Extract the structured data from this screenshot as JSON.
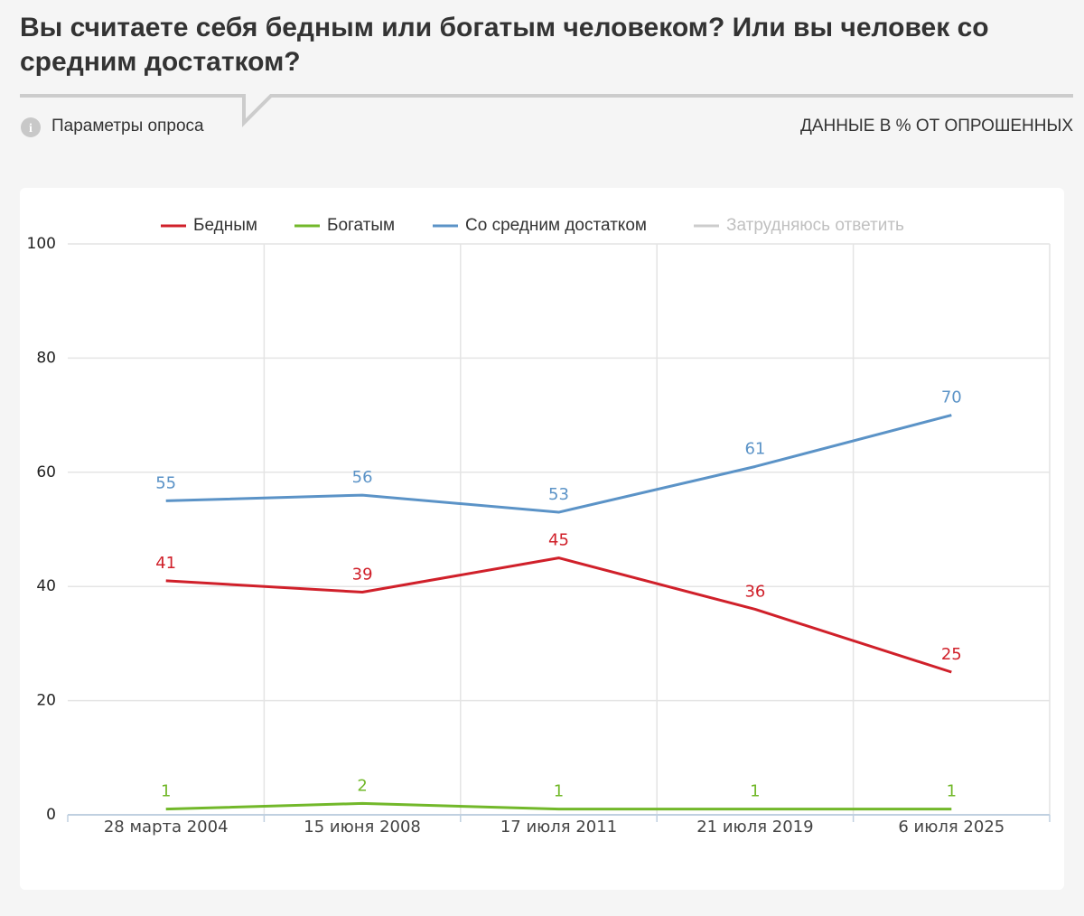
{
  "header": {
    "title": "Вы считаете себя бедным или богатым человеком? Или вы человек со средним достатком?",
    "params": "Параметры опроса",
    "units": "ДАННЫЕ В % ОТ ОПРОШЕННЫХ"
  },
  "chart_data": {
    "type": "line",
    "categories": [
      "28 марта 2004",
      "15 июня 2008",
      "17 июля 2011",
      "21 июля 2019",
      "6 июля 2025"
    ],
    "series": [
      {
        "name": "Бедным",
        "color": "#d0202a",
        "values": [
          41,
          39,
          45,
          36,
          25
        ]
      },
      {
        "name": "Богатым",
        "color": "#72b82a",
        "values": [
          1,
          2,
          1,
          1,
          1
        ]
      },
      {
        "name": "Со средним достатком",
        "color": "#5b93c7",
        "values": [
          55,
          56,
          53,
          61,
          70
        ]
      },
      {
        "name": "Затрудняюсь ответить",
        "color": "#cccccc",
        "visible": false,
        "values": [
          null,
          null,
          null,
          null,
          null
        ]
      }
    ],
    "ylim": [
      0,
      100
    ],
    "yticks": [
      0,
      20,
      40,
      60,
      80,
      100
    ],
    "grid": true,
    "legend": "top",
    "data_labels": true
  }
}
